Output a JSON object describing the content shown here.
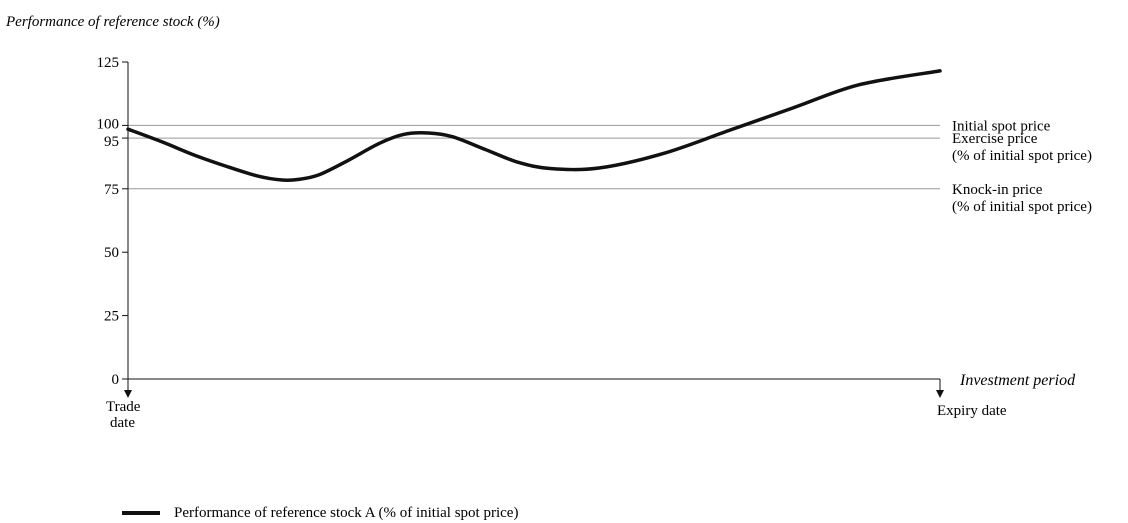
{
  "chart_data": {
    "type": "line",
    "ylabel": "Performance of reference stock (%)",
    "xlabel": "Investment period",
    "ylim": [
      0,
      125
    ],
    "yticks": [
      "0",
      "25",
      "50",
      "75",
      "95",
      "100",
      "125"
    ],
    "x_start_label": [
      "Trade",
      "date"
    ],
    "x_end_label": "Expiry date",
    "reference_lines": [
      {
        "value": 100,
        "label": [
          "Initial spot price"
        ]
      },
      {
        "value": 95,
        "label": [
          "Exercise price",
          "(% of initial spot price)"
        ]
      },
      {
        "value": 75,
        "label": [
          "Knock-in price",
          "(% of initial spot price)"
        ]
      }
    ],
    "series": [
      {
        "name": "Performance of reference stock A (% of initial spot price)",
        "color": "#111111",
        "x": [
          0,
          0.042,
          0.08,
          0.12,
          0.16,
          0.188,
          0.21,
          0.235,
          0.27,
          0.31,
          0.34,
          0.37,
          0.4,
          0.44,
          0.48,
          0.52,
          0.58,
          0.66,
          0.74,
          0.82,
          0.9,
          1.0
        ],
        "values": [
          98.5,
          93.5,
          88.5,
          84,
          80,
          78.5,
          78.7,
          80.5,
          86,
          93,
          96.5,
          97,
          95.5,
          90.5,
          85.5,
          83,
          83.2,
          89,
          98,
          107,
          116,
          121.5
        ]
      }
    ]
  }
}
